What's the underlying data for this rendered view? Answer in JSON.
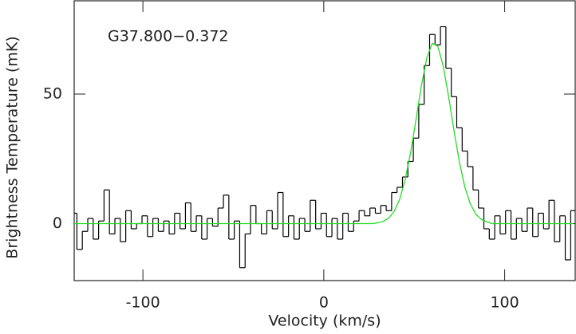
{
  "chart_data": {
    "type": "step",
    "annotation": "G37.800−0.372",
    "xlabel": "Velocity (km/s)",
    "ylabel": "Brightness Temperature (mK)",
    "xlim": [
      -138,
      139
    ],
    "ylim": [
      -22,
      86
    ],
    "xticks": [
      -100,
      0,
      100
    ],
    "yticks": [
      0,
      50
    ],
    "x": [
      -138,
      -135,
      -132,
      -129,
      -126,
      -123,
      -120,
      -117,
      -114,
      -111,
      -108,
      -105,
      -102,
      -99,
      -96,
      -93,
      -90,
      -87,
      -84,
      -81,
      -78,
      -75,
      -72,
      -69,
      -66,
      -63,
      -60,
      -57,
      -54,
      -51,
      -48,
      -45,
      -42,
      -39,
      -36,
      -33,
      -30,
      -27,
      -24,
      -21,
      -18,
      -15,
      -12,
      -9,
      -6,
      -3,
      0,
      3,
      6,
      9,
      12,
      15,
      18,
      21,
      24,
      27,
      30,
      33,
      36,
      39,
      42,
      45,
      48,
      51,
      54,
      57,
      60,
      63,
      66,
      69,
      72,
      75,
      78,
      81,
      84,
      87,
      90,
      93,
      96,
      99,
      102,
      105,
      108,
      111,
      114,
      117,
      120,
      123,
      126,
      129,
      132,
      135,
      138
    ],
    "series": [
      {
        "name": "spectrum",
        "color": "#000000",
        "style": "step",
        "values": [
          4,
          -10,
          -3,
          2,
          -6,
          1,
          13,
          -4,
          2,
          -7,
          5,
          -2,
          0,
          3,
          -5,
          2,
          -3,
          1,
          -4,
          4,
          -2,
          8,
          -3,
          3,
          -6,
          2,
          -1,
          6,
          11,
          -6,
          1,
          -17,
          -4,
          7,
          0,
          -4,
          5,
          -2,
          12,
          -5,
          3,
          -6,
          2,
          -3,
          9,
          -2,
          4,
          -5,
          2,
          -6,
          4,
          -3,
          1,
          5,
          3,
          6,
          4,
          7,
          5,
          12,
          14,
          18,
          24,
          33,
          46,
          61,
          73,
          69,
          76,
          60,
          49,
          37,
          28,
          22,
          13,
          6,
          -2,
          -6,
          3,
          -4,
          5,
          -6,
          2,
          -3,
          6,
          -5,
          4,
          -2,
          9,
          -7,
          3,
          -14,
          5
        ]
      },
      {
        "name": "fit",
        "color": "#22dd22",
        "style": "line",
        "values": [
          0,
          0,
          0,
          0,
          0,
          0,
          0,
          0,
          0,
          0,
          0,
          0,
          0,
          0,
          0,
          0,
          0,
          0,
          0,
          0,
          0,
          0,
          0,
          0,
          0,
          0,
          0,
          0,
          0,
          0,
          0,
          0,
          0,
          0,
          0,
          0,
          0,
          0,
          0,
          0,
          0,
          0,
          0,
          0,
          0,
          0,
          0,
          0,
          0,
          0,
          0,
          0,
          0,
          0,
          0,
          0,
          0.3,
          0.9,
          2.2,
          4.8,
          9.5,
          17,
          27.4,
          40.2,
          53.4,
          64.1,
          69.6,
          68.5,
          60.9,
          49.1,
          35.8,
          23.6,
          14.1,
          7.6,
          3.7,
          1.7,
          0.7,
          0,
          0,
          0,
          0,
          0,
          0,
          0,
          0,
          0,
          0,
          0,
          0,
          0,
          0,
          0,
          0
        ]
      }
    ]
  }
}
